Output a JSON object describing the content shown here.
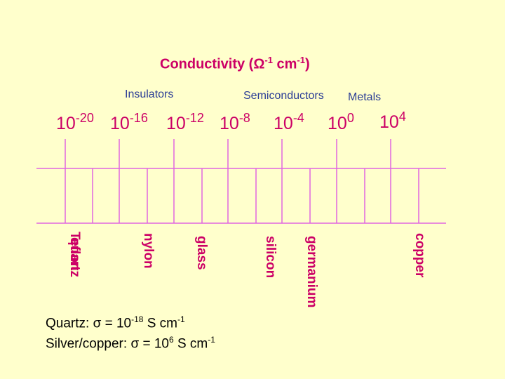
{
  "title": {
    "prefix": "Conductivity (",
    "omega": "Ω",
    "exp1": "-1",
    "unit": " cm",
    "exp2": "-1",
    "suffix": ")"
  },
  "categories": {
    "insulators": "Insulators",
    "semiconductors": "Semiconductors",
    "metals": "Metals"
  },
  "scale_labels": [
    {
      "base": "10",
      "exp": "-20"
    },
    {
      "base": "10",
      "exp": "-16"
    },
    {
      "base": "10",
      "exp": "-12"
    },
    {
      "base": "10",
      "exp": "-8"
    },
    {
      "base": "10",
      "exp": "-4"
    },
    {
      "base": "10",
      "exp": "0"
    },
    {
      "base": "10",
      "exp": "4"
    }
  ],
  "materials": {
    "teflon": "Teflon",
    "quartz": "quartz",
    "nylon": "nylon",
    "glass": "glass",
    "silicon": "silicon",
    "germanium": "germanium",
    "copper": "copper"
  },
  "notes": {
    "quartz_label": "Quartz: ",
    "sigma": "σ",
    "quartz_eq": " = 10",
    "quartz_exp": "-18",
    "quartz_unit": " S cm",
    "quartz_unit_exp": "-1",
    "silver_label": "Silver/copper: ",
    "silver_eq": " = 10",
    "silver_exp": "6",
    "silver_unit": " S cm",
    "silver_unit_exp": "-1"
  },
  "colors": {
    "background": "#ffffcc",
    "accent": "#cc0066",
    "line": "#e066e0",
    "category": "#2c3e96"
  }
}
